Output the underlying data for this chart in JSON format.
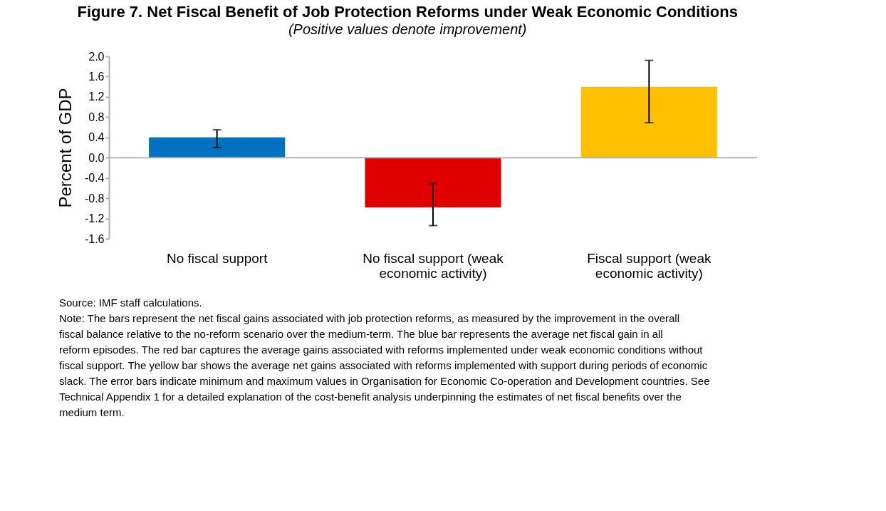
{
  "chart_data": {
    "type": "bar",
    "title": "Figure 7. Net Fiscal Benefit of Job Protection Reforms under Weak Economic Conditions",
    "subtitle": "(Positive values denote improvement)",
    "ylabel": "Percent of GDP",
    "categories": [
      "No fiscal support",
      "No fiscal support (weak economic activity)",
      "Fiscal support (weak economic activity)"
    ],
    "values": [
      0.4,
      -0.98,
      1.4
    ],
    "colors": [
      "#0070c0",
      "#e00000",
      "#ffc000"
    ],
    "errors": [
      [
        0.2,
        0.55
      ],
      [
        -1.34,
        -0.51
      ],
      [
        0.69,
        1.92
      ]
    ],
    "ylim": [
      -1.6,
      2.0
    ],
    "yticks": [
      {
        "value": -1.6,
        "label": "-1.6"
      },
      {
        "value": -1.2,
        "label": "-1.2"
      },
      {
        "value": -0.8,
        "label": "-0.8"
      },
      {
        "value": -0.4,
        "label": "-0.4"
      },
      {
        "value": 0,
        "label": "0.0"
      },
      {
        "value": 0.4,
        "label": "0.4"
      },
      {
        "value": 0.8,
        "label": "0.8"
      },
      {
        "value": 1.2,
        "label": "1.2"
      },
      {
        "value": 1.6,
        "label": "1.6"
      },
      {
        "value": 2.0,
        "label": "2.0"
      }
    ],
    "annotations": [
      "Source: IMF staff calculations.",
      "Note: The bars represent the net fiscal gains associated with job protection reforms, as measured by the improvement in the overall fiscal balance relative to the no-reform scenario over the medium-term. The blue bar represents the average net fiscal gain in all reform episodes. The red bar captures the average gains associated with reforms implemented under weak economic conditions without fiscal support. The yellow bar shows the average net gains associated with reforms implemented with support during periods of economic slack. The error bars indicate minimum and maximum values in Organisation for Economic Co-operation and Development countries. See Technical Appendix 1 for a detailed explanation of the cost-benefit analysis underpinning the estimates of net fiscal benefits over the medium term."
    ]
  }
}
